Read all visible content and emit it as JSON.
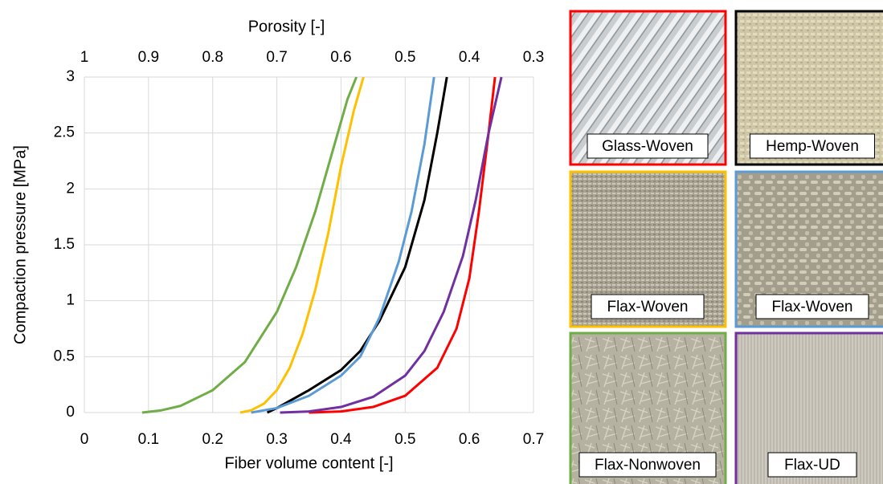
{
  "chart_data": {
    "type": "line",
    "xlabel": "Fiber volume content [-]",
    "ylabel": "Compaction pressure [MPa]",
    "x2label": "Porosity [-]",
    "xlim": [
      0,
      0.7
    ],
    "xticks": [
      0,
      0.1,
      0.2,
      0.3,
      0.4,
      0.5,
      0.6,
      0.7
    ],
    "x2lim": [
      1,
      0.3
    ],
    "x2ticks": [
      1,
      0.9,
      0.8,
      0.7,
      0.6,
      0.5,
      0.4,
      0.3
    ],
    "ylim": [
      0,
      3
    ],
    "yticks": [
      0,
      0.5,
      1,
      1.5,
      2,
      2.5,
      3
    ],
    "grid": true,
    "series": [
      {
        "name": "Glass-Woven",
        "color": "#ff0000",
        "x": [
          0.35,
          0.4,
          0.45,
          0.5,
          0.55,
          0.58,
          0.6,
          0.615,
          0.63,
          0.64
        ],
        "values": [
          0,
          0.01,
          0.05,
          0.15,
          0.4,
          0.75,
          1.2,
          1.8,
          2.5,
          3
        ]
      },
      {
        "name": "Hemp-Woven",
        "color": "#000000",
        "x": [
          0.285,
          0.3,
          0.35,
          0.4,
          0.43,
          0.46,
          0.5,
          0.53,
          0.55,
          0.565
        ],
        "values": [
          0,
          0.04,
          0.2,
          0.38,
          0.55,
          0.82,
          1.3,
          1.9,
          2.5,
          3
        ]
      },
      {
        "name": "Flax-Woven",
        "color": "#ffc000",
        "x": [
          0.243,
          0.26,
          0.28,
          0.3,
          0.32,
          0.34,
          0.36,
          0.38,
          0.4,
          0.42,
          0.435
        ],
        "values": [
          0,
          0.02,
          0.08,
          0.2,
          0.4,
          0.7,
          1.1,
          1.6,
          2.2,
          2.7,
          3
        ]
      },
      {
        "name": "Flax-Woven",
        "color": "#5b9bd5",
        "x": [
          0.26,
          0.3,
          0.35,
          0.4,
          0.43,
          0.46,
          0.49,
          0.51,
          0.53,
          0.545
        ],
        "values": [
          0,
          0.04,
          0.15,
          0.33,
          0.5,
          0.85,
          1.35,
          1.8,
          2.4,
          3
        ]
      },
      {
        "name": "Flax-Nonwoven",
        "color": "#70ad47",
        "x": [
          0.09,
          0.12,
          0.15,
          0.2,
          0.25,
          0.3,
          0.33,
          0.36,
          0.39,
          0.41,
          0.424
        ],
        "values": [
          0,
          0.02,
          0.06,
          0.2,
          0.45,
          0.9,
          1.3,
          1.8,
          2.4,
          2.8,
          3
        ]
      },
      {
        "name": "Flax-UD",
        "color": "#7030a0",
        "x": [
          0.305,
          0.35,
          0.4,
          0.45,
          0.5,
          0.53,
          0.56,
          0.59,
          0.61,
          0.63,
          0.65
        ],
        "values": [
          0,
          0.01,
          0.05,
          0.14,
          0.33,
          0.55,
          0.9,
          1.4,
          1.9,
          2.5,
          3
        ]
      }
    ]
  }
}
